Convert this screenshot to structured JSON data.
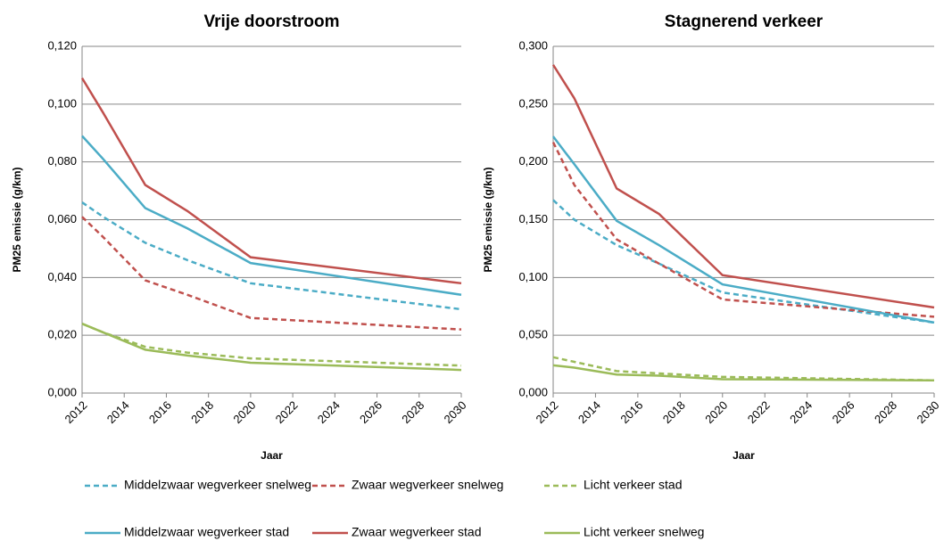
{
  "chart_data": [
    {
      "type": "line",
      "title": "Vrije doorstroom",
      "ylabel": "PM25 emissie (g/km)",
      "xlabel": "Jaar",
      "x": [
        2012,
        2013,
        2015,
        2017,
        2020,
        2030
      ],
      "xlim": [
        2012,
        2030
      ],
      "xticks": [
        2012,
        2014,
        2016,
        2018,
        2020,
        2022,
        2024,
        2026,
        2028,
        2030
      ],
      "ylim": [
        0,
        0.12
      ],
      "yticks": [
        {
          "value": 0,
          "label": "0,000"
        },
        {
          "value": 0.02,
          "label": "0,020"
        },
        {
          "value": 0.04,
          "label": "0,040"
        },
        {
          "value": 0.06,
          "label": "0,060"
        },
        {
          "value": 0.08,
          "label": "0,080"
        },
        {
          "value": 0.1,
          "label": "0,100"
        },
        {
          "value": 0.12,
          "label": "0,120"
        }
      ],
      "grid": true,
      "series": [
        {
          "name": "Middelzwaar wegverkeer snelweg",
          "color": "#4bacc6",
          "dashed": true,
          "values": [
            0.066,
            0.061,
            0.052,
            0.046,
            0.038,
            0.029
          ]
        },
        {
          "name": "Zwaar wegverkeer snelweg",
          "color": "#c0504d",
          "dashed": true,
          "values": [
            0.061,
            0.054,
            0.039,
            0.034,
            0.026,
            0.022
          ]
        },
        {
          "name": "Licht verkeer stad",
          "color": "#9bbb59",
          "dashed": true,
          "values": [
            0.024,
            0.021,
            0.016,
            0.014,
            0.012,
            0.0095
          ]
        },
        {
          "name": "Middelzwaar wegverkeer stad",
          "color": "#4bacc6",
          "dashed": false,
          "values": [
            0.089,
            0.081,
            0.064,
            0.057,
            0.045,
            0.034
          ]
        },
        {
          "name": "Zwaar wegverkeer stad",
          "color": "#c0504d",
          "dashed": false,
          "values": [
            0.109,
            0.097,
            0.072,
            0.063,
            0.047,
            0.038
          ]
        },
        {
          "name": "Licht verkeer snelweg",
          "color": "#9bbb59",
          "dashed": false,
          "values": [
            0.024,
            0.021,
            0.015,
            0.013,
            0.0105,
            0.008
          ]
        }
      ]
    },
    {
      "type": "line",
      "title": "Stagnerend verkeer",
      "ylabel": "PM25 emissie (g/km)",
      "xlabel": "Jaar",
      "x": [
        2012,
        2013,
        2015,
        2017,
        2020,
        2030
      ],
      "xlim": [
        2012,
        2030
      ],
      "xticks": [
        2012,
        2014,
        2016,
        2018,
        2020,
        2022,
        2024,
        2026,
        2028,
        2030
      ],
      "ylim": [
        0,
        0.3
      ],
      "yticks": [
        {
          "value": 0,
          "label": "0,000"
        },
        {
          "value": 0.05,
          "label": "0,050"
        },
        {
          "value": 0.1,
          "label": "0,100"
        },
        {
          "value": 0.15,
          "label": "0,150"
        },
        {
          "value": 0.2,
          "label": "0,200"
        },
        {
          "value": 0.25,
          "label": "0,250"
        },
        {
          "value": 0.3,
          "label": "0,300"
        }
      ],
      "grid": true,
      "series": [
        {
          "name": "Middelzwaar wegverkeer snelweg",
          "color": "#4bacc6",
          "dashed": true,
          "values": [
            0.167,
            0.15,
            0.128,
            0.112,
            0.087,
            0.061
          ]
        },
        {
          "name": "Zwaar wegverkeer snelweg",
          "color": "#c0504d",
          "dashed": true,
          "values": [
            0.217,
            0.18,
            0.133,
            0.112,
            0.081,
            0.066
          ]
        },
        {
          "name": "Licht verkeer stad",
          "color": "#9bbb59",
          "dashed": true,
          "values": [
            0.031,
            0.027,
            0.019,
            0.017,
            0.014,
            0.011
          ]
        },
        {
          "name": "Middelzwaar wegverkeer stad",
          "color": "#4bacc6",
          "dashed": false,
          "values": [
            0.222,
            0.198,
            0.149,
            0.128,
            0.094,
            0.061
          ]
        },
        {
          "name": "Zwaar wegverkeer stad",
          "color": "#c0504d",
          "dashed": false,
          "values": [
            0.284,
            0.255,
            0.177,
            0.155,
            0.102,
            0.074
          ]
        },
        {
          "name": "Licht verkeer snelweg",
          "color": "#9bbb59",
          "dashed": false,
          "values": [
            0.024,
            0.022,
            0.016,
            0.015,
            0.012,
            0.011
          ]
        }
      ]
    }
  ]
}
